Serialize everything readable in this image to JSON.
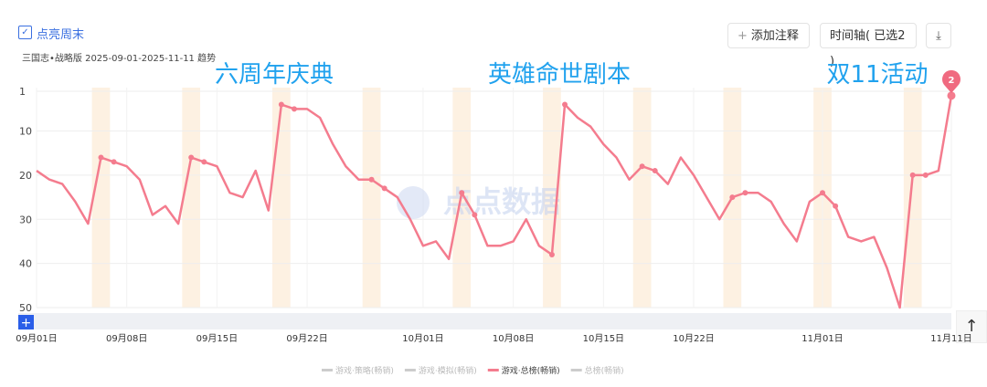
{
  "header": {
    "checkbox_label": "点亮周末",
    "subtitle": "三国志•战略版 2025-09-01-2025-11-11 趋势",
    "buttons": [
      "添加注释",
      "时间轴( 已选2 )"
    ]
  },
  "chart_data": {
    "type": "line",
    "annotations": [
      "六周年庆典",
      "英雄命世剧本",
      "双11活动"
    ],
    "watermark": "点点数据",
    "badge": {
      "value": 2,
      "label": "2"
    },
    "categories": [
      "09月01日",
      null,
      null,
      null,
      null,
      null,
      null,
      "09月08日",
      null,
      null,
      null,
      null,
      null,
      null,
      "09月15日",
      null,
      null,
      null,
      null,
      null,
      null,
      "09月22日",
      null,
      null,
      null,
      null,
      null,
      null,
      null,
      null,
      "10月01日",
      null,
      null,
      null,
      null,
      null,
      null,
      "10月08日",
      null,
      null,
      null,
      null,
      null,
      null,
      "10月15日",
      null,
      null,
      null,
      null,
      null,
      null,
      "10月22日",
      null,
      null,
      null,
      null,
      null,
      null,
      null,
      null,
      null,
      "11月01日",
      null,
      null,
      null,
      null,
      null,
      null,
      null,
      null,
      null,
      "11月11日"
    ],
    "series": [
      {
        "name": "游戏·总榜(畅销)",
        "color": "#f47c8e",
        "values": [
          19,
          21,
          22,
          26,
          31,
          16,
          17,
          18,
          21,
          29,
          27,
          31,
          16,
          17,
          18,
          24,
          25,
          19,
          28,
          4,
          5,
          5,
          7,
          13,
          18,
          21,
          21,
          23,
          25,
          30,
          36,
          35,
          39,
          24,
          29,
          36,
          36,
          35,
          30,
          36,
          38,
          4,
          7,
          9,
          13,
          16,
          21,
          18,
          19,
          22,
          16,
          20,
          25,
          30,
          25,
          24,
          24,
          26,
          31,
          35,
          26,
          24,
          27,
          34,
          35,
          34,
          41,
          50,
          20,
          20,
          19,
          2
        ]
      }
    ],
    "hidden_series": [
      "游戏·策略(畅销)",
      "游戏·模拟(畅销)",
      "总榜(畅销)"
    ],
    "ylim": [
      1,
      50
    ],
    "y_inverted": true,
    "yticks": [
      1,
      10,
      20,
      30,
      40,
      50
    ],
    "grid": true
  }
}
